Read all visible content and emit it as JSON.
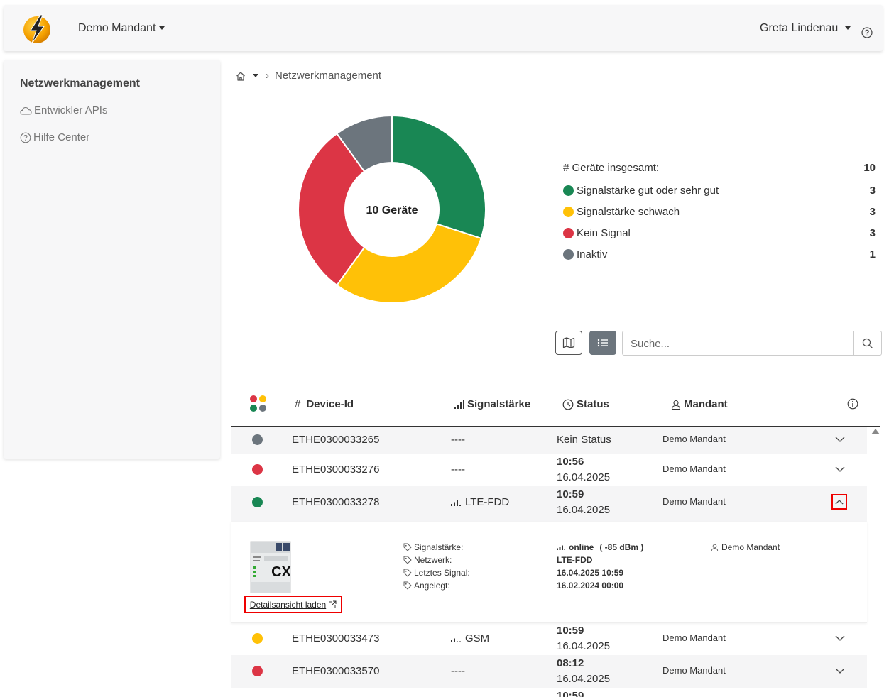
{
  "header": {
    "tenant_label": "Demo Mandant",
    "user_name": "Greta Lindenau"
  },
  "sidebar": {
    "title": "Netzwerkmanagement",
    "items": [
      {
        "label": "Entwickler APIs",
        "icon": "cloud-icon"
      },
      {
        "label": "Hilfe Center",
        "icon": "help-circle-icon"
      }
    ]
  },
  "breadcrumb": {
    "current": "Netzwerkmanagement"
  },
  "chart_data": {
    "type": "pie",
    "center_label": "10 Geräte",
    "categories": [
      "Signalstärke gut oder sehr gut",
      "Signalstärke schwach",
      "Kein Signal",
      "Inaktiv"
    ],
    "values": [
      3,
      3,
      3,
      1
    ],
    "colors": [
      "#198754",
      "#ffc107",
      "#dc3545",
      "#6c757d"
    ]
  },
  "summary": {
    "total_label": "# Geräte insgesamt:",
    "total_value": "10",
    "rows": [
      {
        "label": "Signalstärke gut oder sehr gut",
        "value": "3",
        "color": "#198754"
      },
      {
        "label": "Signalstärke schwach",
        "value": "3",
        "color": "#ffc107"
      },
      {
        "label": "Kein Signal",
        "value": "3",
        "color": "#dc3545"
      },
      {
        "label": "Inaktiv",
        "value": "1",
        "color": "#6c757d"
      }
    ]
  },
  "search": {
    "placeholder": "Suche..."
  },
  "table": {
    "headers": {
      "device_id": "Device-Id",
      "signal": "Signalstärke",
      "status": "Status",
      "tenant": "Mandant"
    },
    "rows": [
      {
        "color": "#6c757d",
        "id": "ETHE0300033265",
        "signal": "----",
        "status": "Kein Status",
        "time": "",
        "date": "",
        "tenant": "Demo Mandant"
      },
      {
        "color": "#dc3545",
        "id": "ETHE0300033276",
        "signal": "----",
        "status": "",
        "time": "10:56",
        "date": "16.04.2025",
        "tenant": "Demo Mandant"
      },
      {
        "color": "#198754",
        "id": "ETHE0300033278",
        "signal": "LTE-FDD",
        "status": "",
        "time": "10:59",
        "date": "16.04.2025",
        "tenant": "Demo Mandant"
      },
      {
        "color": "#ffc107",
        "id": "ETHE0300033473",
        "signal": "GSM",
        "status": "",
        "time": "10:59",
        "date": "16.04.2025",
        "tenant": "Demo Mandant"
      },
      {
        "color": "#dc3545",
        "id": "ETHE0300033570",
        "signal": "----",
        "status": "",
        "time": "08:12",
        "date": "16.04.2025",
        "tenant": "Demo Mandant"
      },
      {
        "color": "",
        "id": "",
        "signal": "",
        "status": "",
        "time": "10:59",
        "date": "",
        "tenant": ""
      }
    ]
  },
  "detail": {
    "image_text": "CX",
    "link_label": "Detailsansicht laden",
    "labels": [
      "Signalstärke:",
      "Netzwerk:",
      "Letztes Signal:",
      "Angelegt:"
    ],
    "signal_status": "online",
    "signal_dbm": "( -85 dBm )",
    "network": "LTE-FDD",
    "last_signal": "16.04.2025 10:59",
    "created": "16.02.2024 00:00",
    "tenant": "Demo Mandant"
  }
}
